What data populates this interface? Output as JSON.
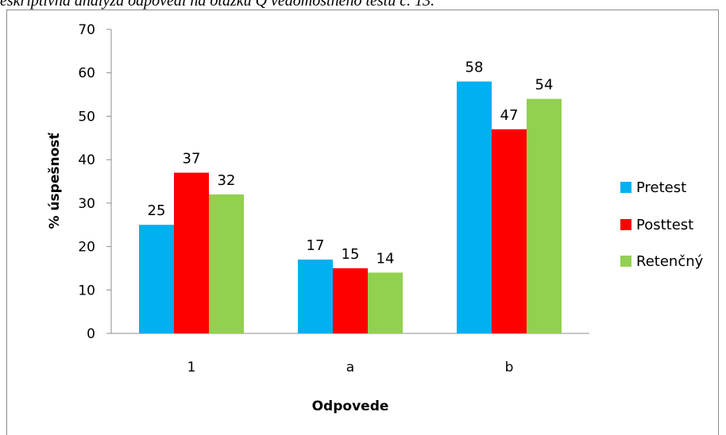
{
  "caption": "eskriptívna analýza odpovedí na otázku Q vedomostného testu č. 13.",
  "chart_data": {
    "type": "bar",
    "categories": [
      "1",
      "a",
      "b"
    ],
    "series": [
      {
        "name": "Pretest",
        "color": "#00b0f0",
        "values": [
          25,
          17,
          58
        ]
      },
      {
        "name": "Posttest",
        "color": "#ff0000",
        "values": [
          37,
          15,
          47
        ]
      },
      {
        "name": "Retenčný",
        "color": "#92d050",
        "values": [
          32,
          14,
          54
        ]
      }
    ],
    "xlabel": "Odpovede",
    "ylabel": "% úspešnosť",
    "ylim": [
      0,
      70
    ],
    "yticks": [
      0,
      10,
      20,
      30,
      40,
      50,
      60,
      70
    ],
    "grid": false,
    "legend_position": "right"
  }
}
